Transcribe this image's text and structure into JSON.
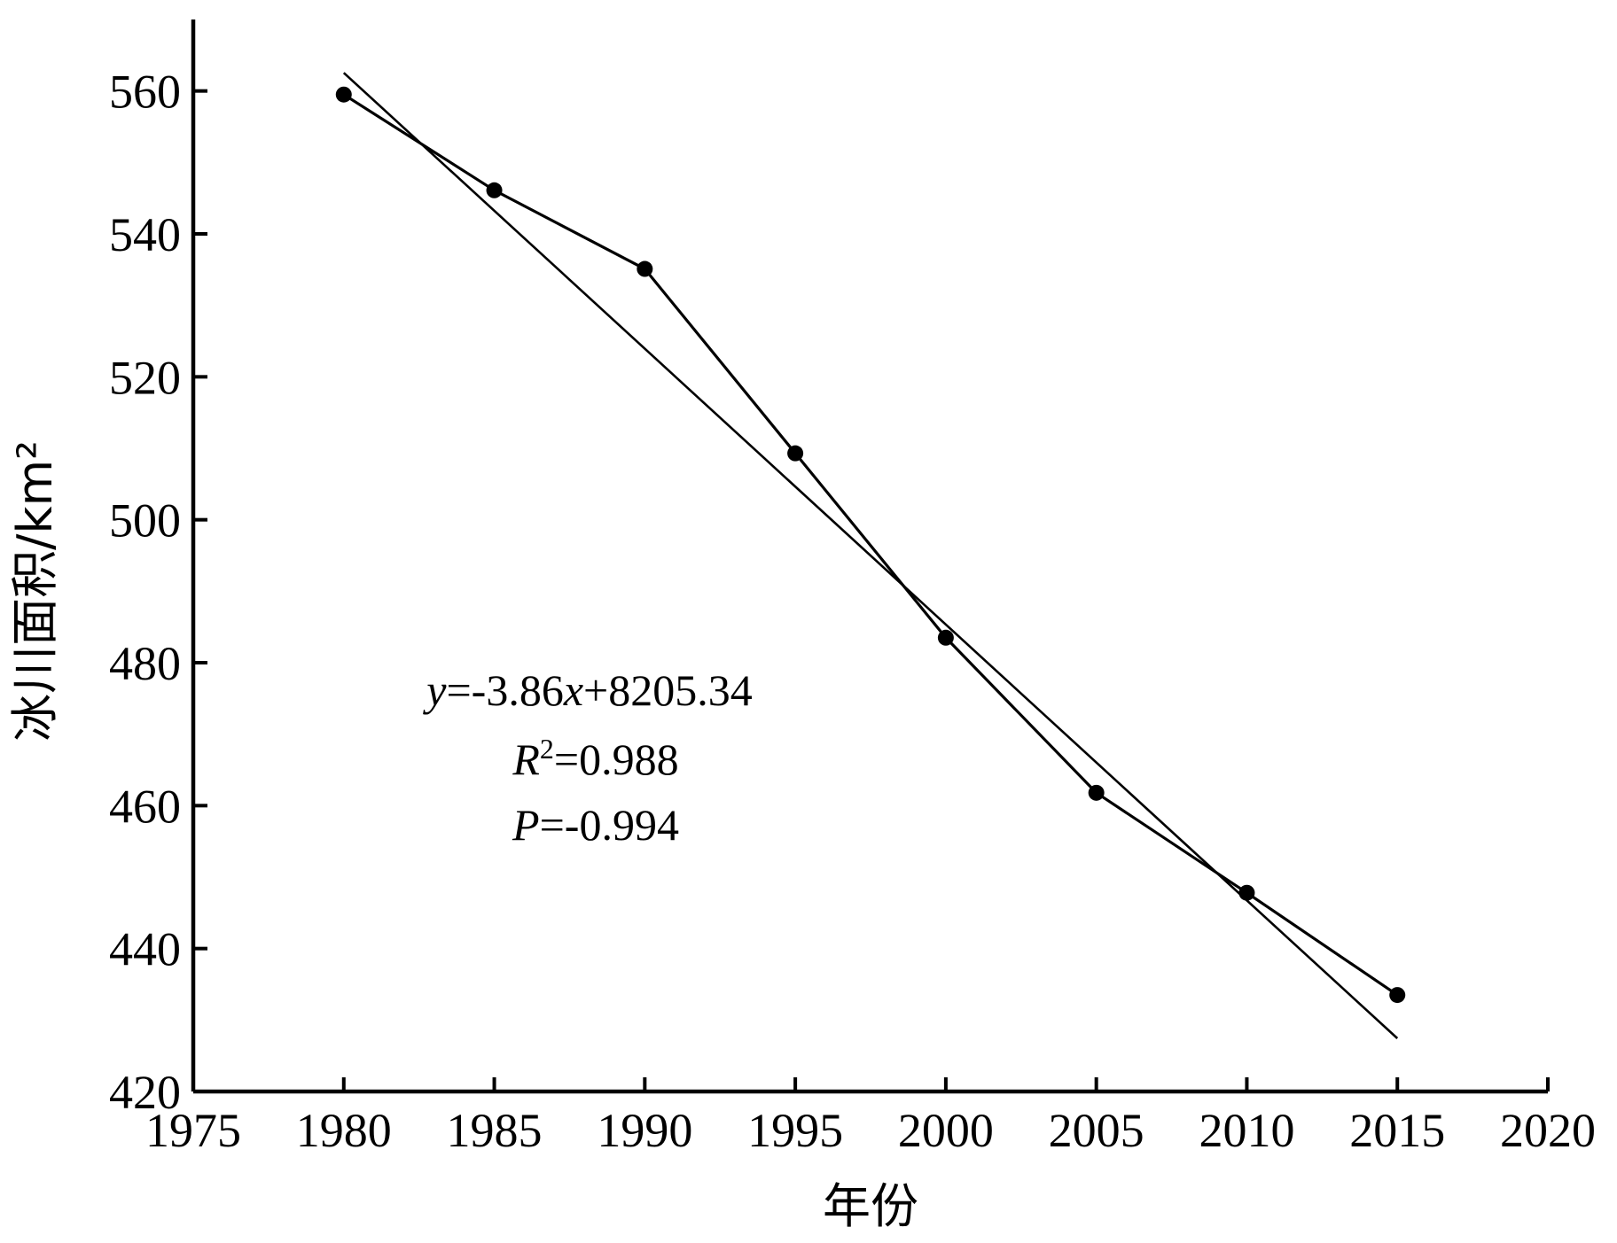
{
  "chart_data": {
    "type": "line",
    "xlabel": "年份",
    "ylabel": "冰川面积/km²",
    "xlim": [
      1975,
      2020
    ],
    "ylim": [
      420,
      570
    ],
    "xticks": [
      1975,
      1980,
      1985,
      1990,
      1995,
      2000,
      2005,
      2010,
      2015,
      2020
    ],
    "yticks": [
      420,
      440,
      460,
      480,
      500,
      520,
      540,
      560
    ],
    "grid": false,
    "series": [
      {
        "x": [
          1980,
          1985,
          1990,
          1995,
          2000,
          2005,
          2010,
          2015
        ],
        "values": [
          559.5,
          546.1,
          535.1,
          509.3,
          483.5,
          461.8,
          447.8,
          433.5
        ]
      }
    ],
    "trendline": {
      "slope": -3.86,
      "intercept": 8205.34,
      "x": [
        1980,
        2015
      ]
    },
    "annotations": {
      "equation": {
        "y": "y",
        "eq1": "=-3.86",
        "x": "x",
        "eq2": "+8205.34"
      },
      "r2": {
        "r": "R",
        "sup": "2",
        "val": "=0.988"
      },
      "p": {
        "p": "P",
        "val": "=-0.994"
      }
    }
  }
}
